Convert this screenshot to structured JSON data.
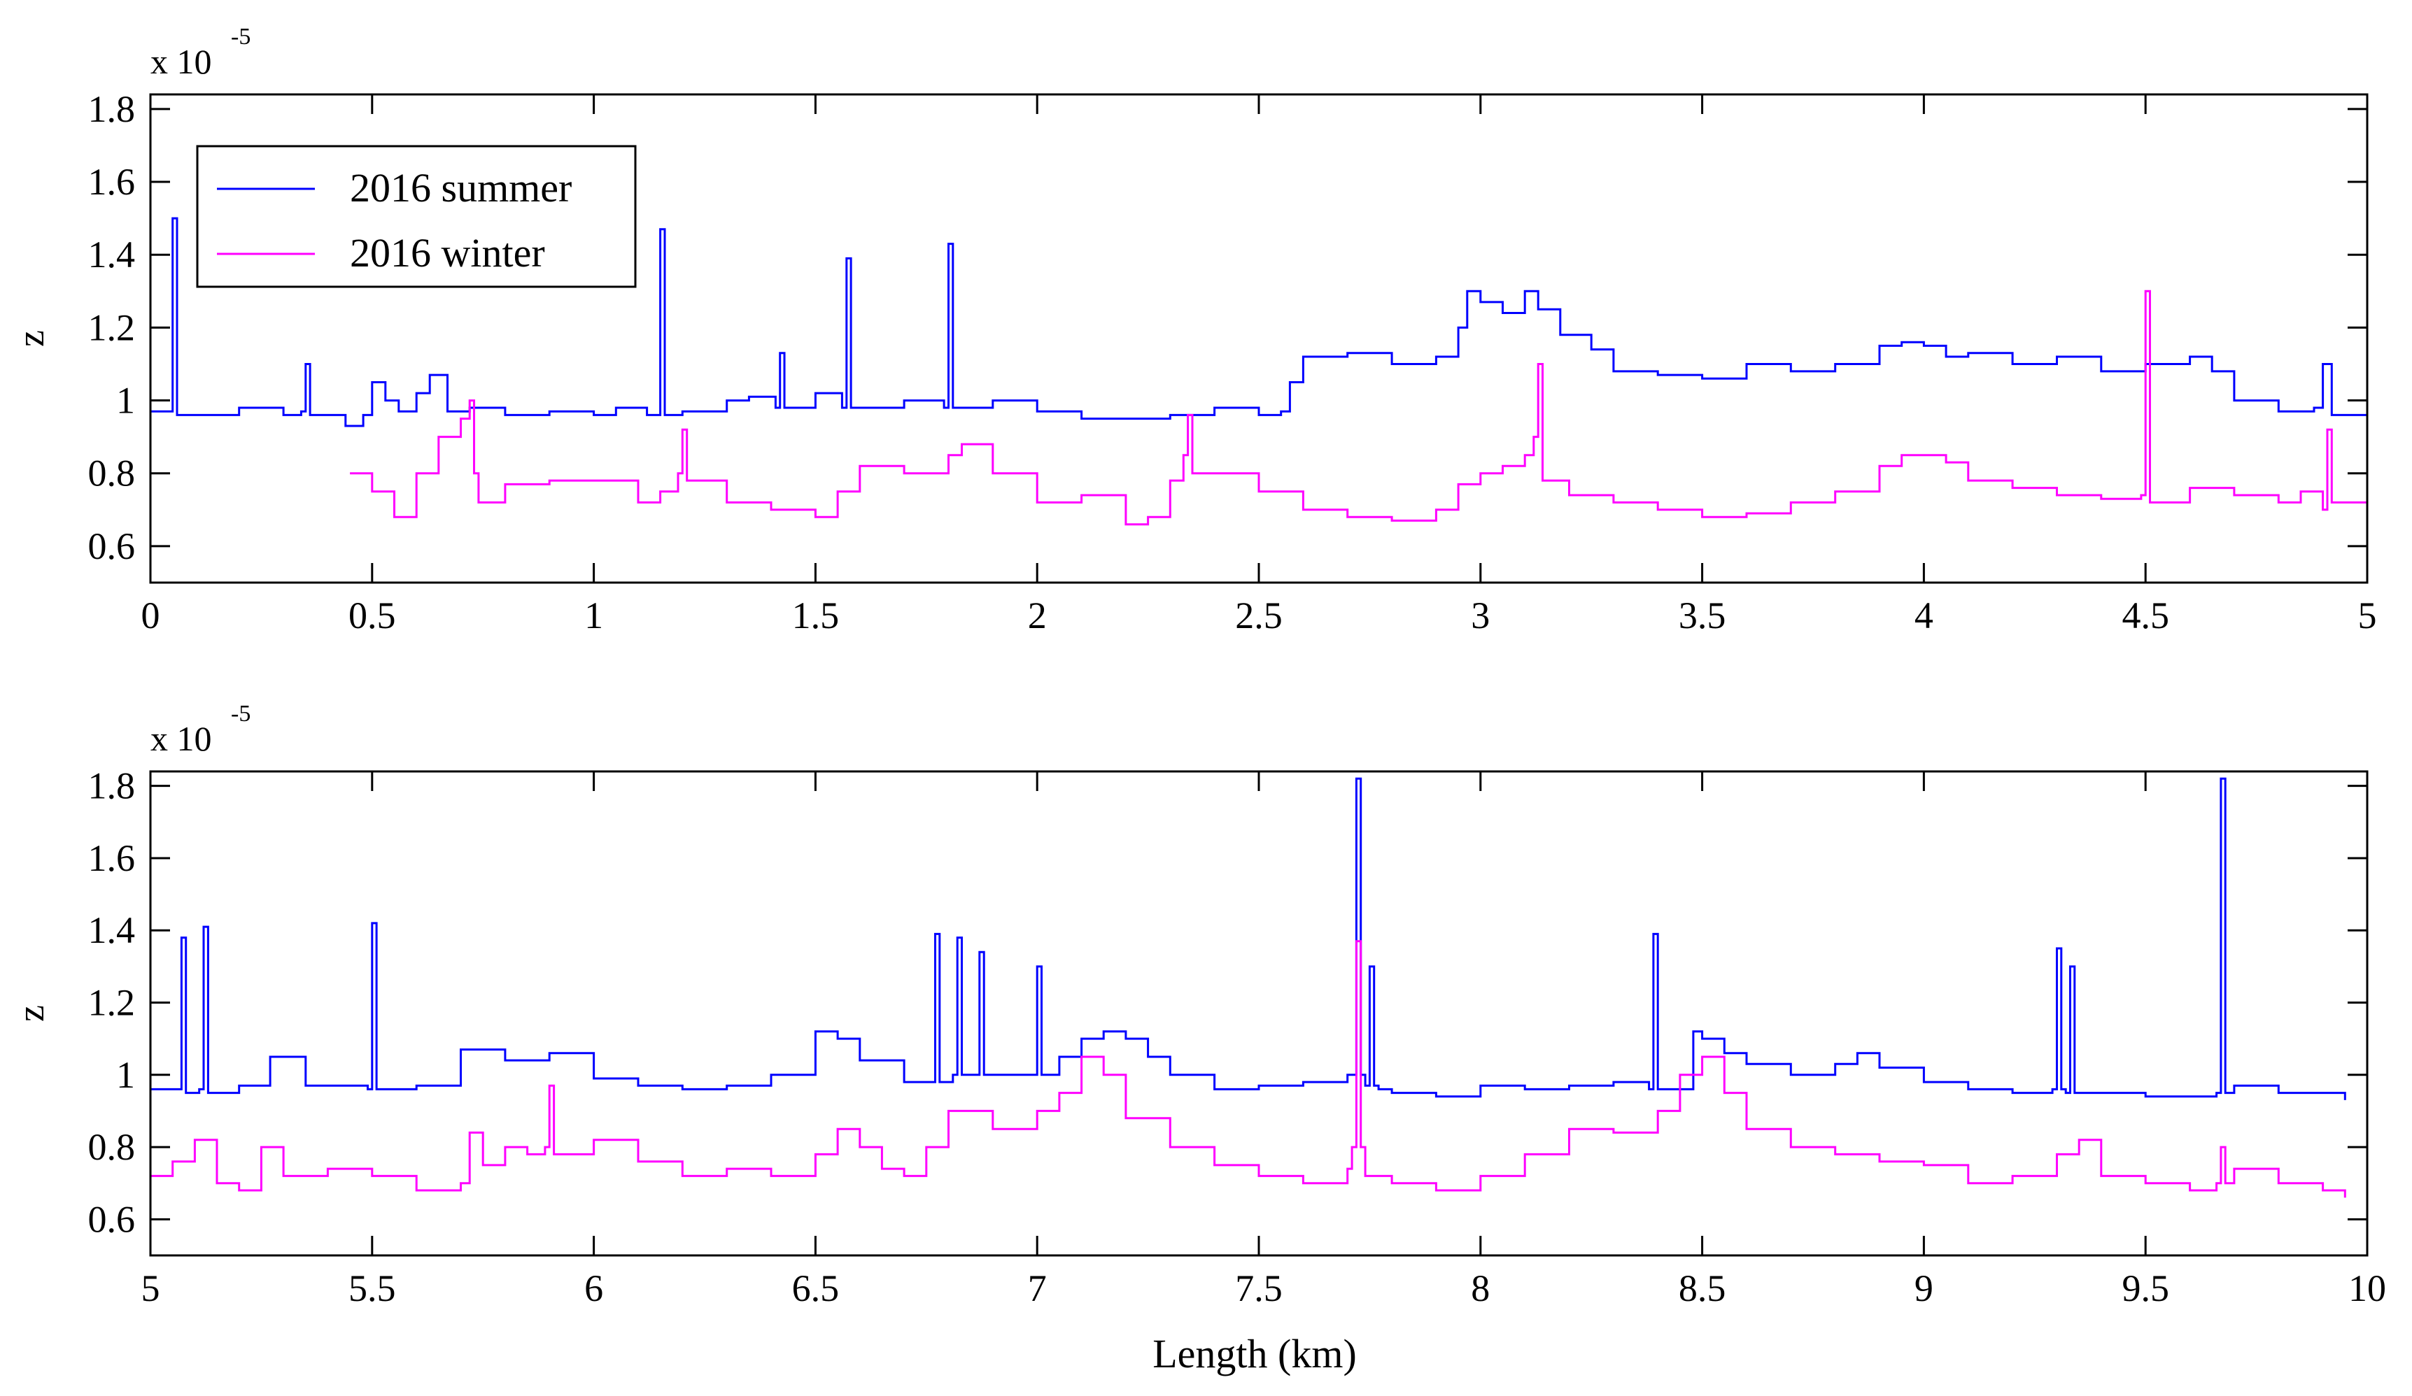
{
  "figure": {
    "xlabel": "Length (km)",
    "legend": [
      "2016 summer",
      "2016 winter"
    ],
    "colors": {
      "summer": "#0000ff",
      "winter": "#ff00ff",
      "axes": "#000000"
    }
  },
  "chart_data": [
    {
      "type": "line",
      "ylabel": "z",
      "exponent_label": "x 10",
      "exponent": "-5",
      "xlim": [
        0,
        5
      ],
      "ylim": [
        0.5,
        1.84
      ],
      "xticks": [
        0,
        0.5,
        1,
        1.5,
        2,
        2.5,
        3,
        3.5,
        4,
        4.5,
        5
      ],
      "yticks": [
        0.6,
        0.8,
        1,
        1.2,
        1.4,
        1.6,
        1.8
      ],
      "legend_position": "top-left",
      "series": [
        {
          "name": "2016 summer",
          "color": "#0000ff",
          "x": [
            0,
            0.04,
            0.05,
            0.06,
            0.1,
            0.2,
            0.3,
            0.34,
            0.35,
            0.36,
            0.42,
            0.44,
            0.48,
            0.5,
            0.53,
            0.56,
            0.6,
            0.63,
            0.67,
            0.72,
            0.8,
            0.9,
            1.0,
            1.05,
            1.12,
            1.14,
            1.15,
            1.16,
            1.2,
            1.3,
            1.35,
            1.41,
            1.42,
            1.43,
            1.5,
            1.56,
            1.57,
            1.58,
            1.65,
            1.7,
            1.79,
            1.8,
            1.81,
            1.9,
            2.0,
            2.1,
            2.2,
            2.3,
            2.4,
            2.5,
            2.55,
            2.57,
            2.6,
            2.7,
            2.8,
            2.9,
            2.95,
            2.97,
            3.0,
            3.05,
            3.1,
            3.13,
            3.18,
            3.25,
            3.3,
            3.4,
            3.5,
            3.6,
            3.7,
            3.8,
            3.9,
            3.95,
            4.0,
            4.05,
            4.1,
            4.2,
            4.3,
            4.4,
            4.5,
            4.6,
            4.65,
            4.7,
            4.8,
            4.88,
            4.9,
            4.92,
            4.96,
            5.0
          ],
          "y": [
            0.97,
            0.97,
            1.5,
            0.96,
            0.96,
            0.98,
            0.96,
            0.97,
            1.1,
            0.96,
            0.96,
            0.93,
            0.96,
            1.05,
            1.0,
            0.97,
            1.02,
            1.07,
            0.97,
            0.98,
            0.96,
            0.97,
            0.96,
            0.98,
            0.96,
            0.96,
            1.47,
            0.96,
            0.97,
            1.0,
            1.01,
            0.98,
            1.13,
            0.98,
            1.02,
            0.98,
            1.39,
            0.98,
            0.98,
            1.0,
            0.98,
            1.43,
            0.98,
            1.0,
            0.97,
            0.95,
            0.95,
            0.96,
            0.98,
            0.96,
            0.97,
            1.05,
            1.12,
            1.13,
            1.1,
            1.12,
            1.2,
            1.3,
            1.27,
            1.24,
            1.3,
            1.25,
            1.18,
            1.14,
            1.08,
            1.07,
            1.06,
            1.1,
            1.08,
            1.1,
            1.15,
            1.16,
            1.15,
            1.12,
            1.13,
            1.1,
            1.12,
            1.08,
            1.1,
            1.12,
            1.08,
            1.0,
            0.97,
            0.98,
            1.1,
            0.96,
            0.96,
            0.95
          ]
        },
        {
          "name": "2016 winter",
          "color": "#ff00ff",
          "x": [
            0.45,
            0.5,
            0.55,
            0.6,
            0.65,
            0.7,
            0.72,
            0.73,
            0.74,
            0.8,
            0.9,
            1.0,
            1.1,
            1.15,
            1.19,
            1.2,
            1.21,
            1.3,
            1.4,
            1.5,
            1.55,
            1.6,
            1.7,
            1.8,
            1.83,
            1.9,
            2.0,
            2.1,
            2.2,
            2.25,
            2.3,
            2.33,
            2.34,
            2.35,
            2.4,
            2.5,
            2.6,
            2.7,
            2.8,
            2.9,
            2.95,
            3.0,
            3.05,
            3.1,
            3.12,
            3.13,
            3.14,
            3.2,
            3.3,
            3.4,
            3.5,
            3.6,
            3.7,
            3.8,
            3.9,
            3.95,
            4.0,
            4.05,
            4.1,
            4.2,
            4.3,
            4.4,
            4.49,
            4.5,
            4.51,
            4.6,
            4.7,
            4.8,
            4.85,
            4.9,
            4.91,
            4.92,
            5.0
          ],
          "y": [
            0.8,
            0.75,
            0.68,
            0.8,
            0.9,
            0.95,
            1.0,
            0.8,
            0.72,
            0.77,
            0.78,
            0.78,
            0.72,
            0.75,
            0.8,
            0.92,
            0.78,
            0.72,
            0.7,
            0.68,
            0.75,
            0.82,
            0.8,
            0.85,
            0.88,
            0.8,
            0.72,
            0.74,
            0.66,
            0.68,
            0.78,
            0.85,
            0.96,
            0.8,
            0.8,
            0.75,
            0.7,
            0.68,
            0.67,
            0.7,
            0.77,
            0.8,
            0.82,
            0.85,
            0.9,
            1.1,
            0.78,
            0.74,
            0.72,
            0.7,
            0.68,
            0.69,
            0.72,
            0.75,
            0.82,
            0.85,
            0.85,
            0.83,
            0.78,
            0.76,
            0.74,
            0.73,
            0.74,
            1.3,
            0.72,
            0.76,
            0.74,
            0.72,
            0.75,
            0.7,
            0.92,
            0.72,
            0.7
          ]
        }
      ]
    },
    {
      "type": "line",
      "ylabel": "z",
      "exponent_label": "x 10",
      "exponent": "-5",
      "xlim": [
        5,
        10
      ],
      "ylim": [
        0.5,
        1.84
      ],
      "xticks": [
        5,
        5.5,
        6,
        6.5,
        7,
        7.5,
        8,
        8.5,
        9,
        9.5,
        10
      ],
      "yticks": [
        0.6,
        0.8,
        1,
        1.2,
        1.4,
        1.6,
        1.8
      ],
      "series": [
        {
          "name": "2016 summer",
          "color": "#0000ff",
          "x": [
            5.0,
            5.06,
            5.07,
            5.08,
            5.11,
            5.12,
            5.13,
            5.2,
            5.27,
            5.35,
            5.49,
            5.5,
            5.51,
            5.6,
            5.7,
            5.8,
            5.9,
            6.0,
            6.1,
            6.2,
            6.3,
            6.4,
            6.5,
            6.55,
            6.6,
            6.7,
            6.76,
            6.77,
            6.78,
            6.81,
            6.82,
            6.83,
            6.86,
            6.87,
            6.88,
            6.9,
            6.99,
            7.0,
            7.01,
            7.05,
            7.1,
            7.15,
            7.2,
            7.25,
            7.3,
            7.4,
            7.5,
            7.6,
            7.7,
            7.72,
            7.73,
            7.74,
            7.75,
            7.76,
            7.77,
            7.8,
            7.9,
            8.0,
            8.1,
            8.2,
            8.3,
            8.38,
            8.39,
            8.4,
            8.48,
            8.5,
            8.55,
            8.6,
            8.7,
            8.8,
            8.85,
            8.9,
            9.0,
            9.1,
            9.2,
            9.29,
            9.3,
            9.31,
            9.32,
            9.33,
            9.34,
            9.4,
            9.5,
            9.6,
            9.66,
            9.67,
            9.68,
            9.7,
            9.8,
            9.9,
            9.95
          ],
          "y": [
            0.96,
            0.96,
            1.38,
            0.95,
            0.96,
            1.41,
            0.95,
            0.97,
            1.05,
            0.97,
            0.96,
            1.42,
            0.96,
            0.97,
            1.07,
            1.04,
            1.06,
            0.99,
            0.97,
            0.96,
            0.97,
            1.0,
            1.12,
            1.1,
            1.04,
            0.98,
            0.98,
            1.39,
            0.98,
            1.0,
            1.38,
            1.0,
            1.0,
            1.34,
            1.0,
            1.0,
            1.0,
            1.3,
            1.0,
            1.05,
            1.1,
            1.12,
            1.1,
            1.05,
            1.0,
            0.96,
            0.97,
            0.98,
            1.0,
            1.82,
            1.0,
            0.97,
            1.3,
            0.97,
            0.96,
            0.95,
            0.94,
            0.97,
            0.96,
            0.97,
            0.98,
            0.96,
            1.39,
            0.96,
            1.12,
            1.1,
            1.06,
            1.03,
            1.0,
            1.03,
            1.06,
            1.02,
            0.98,
            0.96,
            0.95,
            0.96,
            1.35,
            0.96,
            0.95,
            1.3,
            0.95,
            0.95,
            0.94,
            0.94,
            0.95,
            1.82,
            0.95,
            0.97,
            0.95,
            0.95,
            0.93
          ]
        },
        {
          "name": "2016 winter",
          "color": "#ff00ff",
          "x": [
            5.0,
            5.05,
            5.1,
            5.15,
            5.2,
            5.25,
            5.3,
            5.4,
            5.5,
            5.6,
            5.7,
            5.72,
            5.75,
            5.8,
            5.85,
            5.89,
            5.9,
            5.91,
            6.0,
            6.1,
            6.2,
            6.3,
            6.4,
            6.5,
            6.55,
            6.6,
            6.65,
            6.7,
            6.75,
            6.8,
            6.9,
            7.0,
            7.05,
            7.1,
            7.15,
            7.2,
            7.3,
            7.4,
            7.5,
            7.6,
            7.7,
            7.71,
            7.72,
            7.73,
            7.74,
            7.8,
            7.9,
            8.0,
            8.1,
            8.2,
            8.3,
            8.4,
            8.45,
            8.5,
            8.55,
            8.6,
            8.7,
            8.8,
            8.9,
            9.0,
            9.1,
            9.2,
            9.3,
            9.35,
            9.4,
            9.5,
            9.6,
            9.66,
            9.67,
            9.68,
            9.7,
            9.8,
            9.9,
            9.95
          ],
          "y": [
            0.72,
            0.76,
            0.82,
            0.7,
            0.68,
            0.8,
            0.72,
            0.74,
            0.72,
            0.68,
            0.7,
            0.84,
            0.75,
            0.8,
            0.78,
            0.8,
            0.97,
            0.78,
            0.82,
            0.76,
            0.72,
            0.74,
            0.72,
            0.78,
            0.85,
            0.8,
            0.74,
            0.72,
            0.8,
            0.9,
            0.85,
            0.9,
            0.95,
            1.05,
            1.0,
            0.88,
            0.8,
            0.75,
            0.72,
            0.7,
            0.74,
            0.8,
            1.37,
            0.8,
            0.72,
            0.7,
            0.68,
            0.72,
            0.78,
            0.85,
            0.84,
            0.9,
            1.0,
            1.05,
            0.95,
            0.85,
            0.8,
            0.78,
            0.76,
            0.75,
            0.7,
            0.72,
            0.78,
            0.82,
            0.72,
            0.7,
            0.68,
            0.7,
            0.8,
            0.7,
            0.74,
            0.7,
            0.68,
            0.66
          ]
        }
      ]
    }
  ]
}
